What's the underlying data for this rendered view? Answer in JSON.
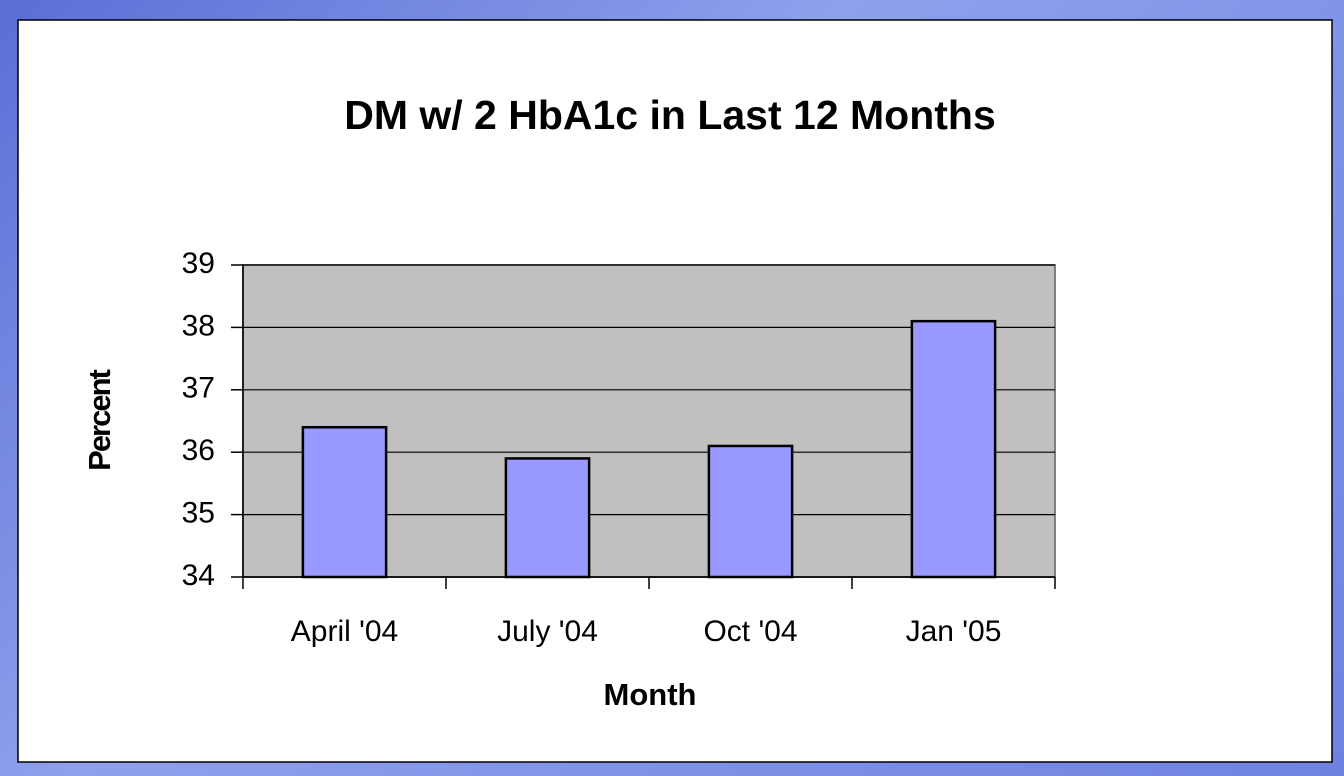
{
  "chart_data": {
    "type": "bar",
    "title": "DM w/ 2 HbA1c in Last 12 Months",
    "x_label": "Month",
    "y_label": "Percent",
    "categories": [
      "April '04",
      "July '04",
      "Oct '04",
      "Jan '05"
    ],
    "values": [
      36.4,
      35.9,
      36.1,
      38.1
    ],
    "color": "#9999ff",
    "ylim": [
      34,
      39
    ],
    "yticks": [
      34,
      35,
      36,
      37,
      38,
      39
    ],
    "grid": true
  }
}
